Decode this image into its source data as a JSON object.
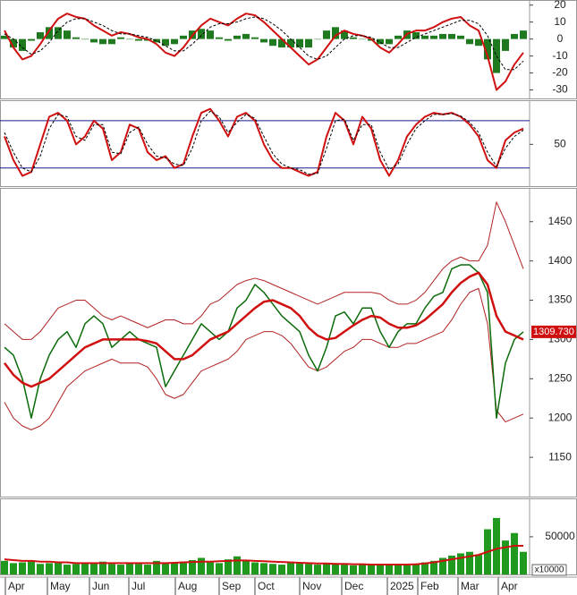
{
  "chart_data": [
    {
      "type": "macd",
      "x": [
        0,
        1,
        2,
        3,
        4,
        5,
        6,
        7,
        8,
        9,
        10,
        11,
        12,
        13,
        14,
        15,
        16,
        17,
        18,
        19,
        20,
        21,
        22,
        23,
        24,
        25,
        26,
        27,
        28,
        29,
        30,
        31,
        32,
        33,
        34,
        35,
        36,
        37,
        38,
        39,
        40,
        41,
        42,
        43,
        44,
        45,
        46,
        47,
        48,
        49,
        50,
        51,
        52,
        53,
        54,
        55,
        56,
        57,
        58
      ],
      "xlim": [
        -0.5,
        58.7
      ],
      "ylim": [
        -35,
        23
      ],
      "yticks": [
        20,
        10,
        0,
        -10,
        -20,
        -30
      ],
      "series": [
        {
          "kind": "bar",
          "color": "#1f7a1f",
          "values": [
            2,
            -5,
            -7,
            -1,
            4,
            7,
            7,
            5,
            1,
            0,
            -2,
            -3,
            -3,
            1,
            0,
            -1,
            -1,
            -2,
            -4,
            -3,
            2,
            5,
            6,
            5,
            1,
            -1,
            2,
            3,
            1,
            -2,
            -4,
            -5,
            -5,
            -5,
            -5,
            0,
            5,
            7,
            5,
            1,
            0,
            -1,
            -3,
            -3,
            2,
            5,
            4,
            2,
            2,
            3,
            3,
            2,
            -3,
            -4,
            -12,
            -20,
            -7,
            3,
            5
          ]
        },
        {
          "kind": "line",
          "color": "#d01010",
          "width": 2,
          "values": [
            5,
            -5,
            -12,
            -10,
            -3,
            5,
            12,
            15,
            13,
            12,
            8,
            5,
            2,
            4,
            3,
            1,
            0,
            -3,
            -8,
            -10,
            -5,
            2,
            8,
            12,
            10,
            8,
            12,
            15,
            14,
            10,
            5,
            0,
            -5,
            -10,
            -15,
            -12,
            -5,
            2,
            5,
            3,
            2,
            0,
            -5,
            -8,
            -3,
            3,
            5,
            5,
            7,
            10,
            12,
            13,
            8,
            5,
            -10,
            -30,
            -25,
            -15,
            -8
          ]
        },
        {
          "kind": "line",
          "color": "#000000",
          "width": 1,
          "dash": true,
          "values": [
            3,
            0,
            -5,
            -9,
            -7,
            -2,
            5,
            10,
            12,
            12,
            10,
            8,
            5,
            3,
            3,
            2,
            1,
            -1,
            -4,
            -7,
            -7,
            -3,
            2,
            7,
            9,
            9,
            10,
            12,
            13,
            12,
            9,
            5,
            0,
            -5,
            -10,
            -12,
            -10,
            -5,
            0,
            2,
            2,
            1,
            -2,
            -5,
            -5,
            -2,
            1,
            3,
            5,
            7,
            9,
            11,
            11,
            9,
            2,
            -10,
            -18,
            -18,
            -13
          ]
        }
      ]
    },
    {
      "type": "stochastic",
      "x": [
        0,
        1,
        2,
        3,
        4,
        5,
        6,
        7,
        8,
        9,
        10,
        11,
        12,
        13,
        14,
        15,
        16,
        17,
        18,
        19,
        20,
        21,
        22,
        23,
        24,
        25,
        26,
        27,
        28,
        29,
        30,
        31,
        32,
        33,
        34,
        35,
        36,
        37,
        38,
        39,
        40,
        41,
        42,
        43,
        44,
        45,
        46,
        47,
        48,
        49,
        50,
        51,
        52,
        53,
        54,
        55,
        56,
        57,
        58
      ],
      "xlim": [
        -0.5,
        58.7
      ],
      "ylim": [
        -3,
        106
      ],
      "yticks": [
        50
      ],
      "hlines": [
        80,
        20
      ],
      "hline_color": "#1a1a8c",
      "series": [
        {
          "kind": "line",
          "color": "#d01010",
          "width": 2,
          "values": [
            60,
            30,
            10,
            15,
            50,
            85,
            90,
            80,
            50,
            60,
            80,
            70,
            30,
            40,
            75,
            70,
            40,
            30,
            35,
            20,
            25,
            60,
            90,
            95,
            80,
            60,
            85,
            90,
            80,
            50,
            30,
            20,
            20,
            15,
            10,
            15,
            60,
            90,
            80,
            50,
            85,
            70,
            30,
            10,
            30,
            60,
            75,
            85,
            90,
            88,
            90,
            85,
            75,
            60,
            30,
            20,
            55,
            65,
            70
          ]
        },
        {
          "kind": "line",
          "color": "#000000",
          "width": 1,
          "dash": true,
          "values": [
            65,
            40,
            20,
            15,
            35,
            70,
            88,
            85,
            60,
            55,
            75,
            75,
            40,
            38,
            65,
            72,
            50,
            35,
            33,
            25,
            23,
            45,
            80,
            92,
            85,
            65,
            78,
            88,
            83,
            60,
            38,
            25,
            20,
            18,
            12,
            13,
            45,
            80,
            82,
            55,
            75,
            75,
            40,
            18,
            25,
            50,
            70,
            80,
            88,
            88,
            89,
            86,
            78,
            65,
            40,
            22,
            45,
            60,
            68
          ]
        }
      ]
    },
    {
      "type": "price",
      "x": [
        0,
        1,
        2,
        3,
        4,
        5,
        6,
        7,
        8,
        9,
        10,
        11,
        12,
        13,
        14,
        15,
        16,
        17,
        18,
        19,
        20,
        21,
        22,
        23,
        24,
        25,
        26,
        27,
        28,
        29,
        30,
        31,
        32,
        33,
        34,
        35,
        36,
        37,
        38,
        39,
        40,
        41,
        42,
        43,
        44,
        45,
        46,
        47,
        48,
        49,
        50,
        51,
        52,
        53,
        54,
        55,
        56,
        57,
        58
      ],
      "xlim": [
        -0.5,
        58.7
      ],
      "ylim": [
        1100,
        1493
      ],
      "yticks": [
        1450,
        1400,
        1350,
        1300,
        1250,
        1200,
        1150
      ],
      "last_label": {
        "value": 1309.73,
        "label": "1309.730"
      },
      "last_color": "#d01010",
      "series": [
        {
          "kind": "line",
          "color": "#b22222",
          "width": 1,
          "values": [
            1320,
            1310,
            1300,
            1300,
            1310,
            1325,
            1340,
            1345,
            1350,
            1350,
            1340,
            1330,
            1325,
            1330,
            1325,
            1320,
            1315,
            1320,
            1325,
            1325,
            1320,
            1320,
            1330,
            1345,
            1350,
            1360,
            1370,
            1375,
            1378,
            1375,
            1370,
            1365,
            1360,
            1355,
            1350,
            1345,
            1350,
            1355,
            1360,
            1360,
            1360,
            1360,
            1358,
            1350,
            1345,
            1345,
            1350,
            1360,
            1375,
            1390,
            1400,
            1405,
            1400,
            1400,
            1420,
            1475,
            1450,
            1420,
            1390
          ]
        },
        {
          "kind": "line",
          "color": "#b22222",
          "width": 1,
          "values": [
            1220,
            1200,
            1190,
            1185,
            1190,
            1200,
            1220,
            1240,
            1250,
            1260,
            1265,
            1270,
            1275,
            1270,
            1270,
            1270,
            1265,
            1250,
            1230,
            1225,
            1230,
            1245,
            1260,
            1265,
            1270,
            1275,
            1285,
            1300,
            1305,
            1310,
            1310,
            1305,
            1295,
            1280,
            1265,
            1260,
            1265,
            1275,
            1285,
            1290,
            1300,
            1300,
            1295,
            1290,
            1290,
            1295,
            1295,
            1300,
            1305,
            1310,
            1325,
            1345,
            1360,
            1365,
            1320,
            1210,
            1195,
            1200,
            1205
          ]
        },
        {
          "kind": "line",
          "color": "#0b6b0b",
          "width": 1.5,
          "values": [
            1290,
            1280,
            1250,
            1200,
            1250,
            1280,
            1300,
            1310,
            1290,
            1320,
            1330,
            1320,
            1290,
            1300,
            1310,
            1300,
            1295,
            1290,
            1240,
            1260,
            1280,
            1300,
            1320,
            1310,
            1300,
            1310,
            1340,
            1350,
            1370,
            1360,
            1345,
            1330,
            1320,
            1310,
            1280,
            1260,
            1290,
            1330,
            1335,
            1320,
            1340,
            1340,
            1310,
            1290,
            1310,
            1320,
            1320,
            1340,
            1355,
            1360,
            1390,
            1395,
            1395,
            1385,
            1360,
            1200,
            1270,
            1300,
            1309.73
          ]
        },
        {
          "kind": "line",
          "color": "#d01010",
          "width": 2.5,
          "values": [
            1270,
            1255,
            1245,
            1240,
            1245,
            1250,
            1260,
            1270,
            1280,
            1290,
            1295,
            1300,
            1300,
            1300,
            1300,
            1300,
            1298,
            1295,
            1285,
            1275,
            1275,
            1280,
            1290,
            1300,
            1305,
            1310,
            1320,
            1330,
            1340,
            1348,
            1350,
            1345,
            1340,
            1330,
            1315,
            1305,
            1300,
            1302,
            1310,
            1318,
            1325,
            1330,
            1328,
            1320,
            1315,
            1315,
            1318,
            1325,
            1335,
            1345,
            1360,
            1372,
            1380,
            1385,
            1370,
            1330,
            1310,
            1305,
            1300
          ]
        }
      ]
    },
    {
      "type": "volume",
      "x": [
        0,
        1,
        2,
        3,
        4,
        5,
        6,
        7,
        8,
        9,
        10,
        11,
        12,
        13,
        14,
        15,
        16,
        17,
        18,
        19,
        20,
        21,
        22,
        23,
        24,
        25,
        26,
        27,
        28,
        29,
        30,
        31,
        32,
        33,
        34,
        35,
        36,
        37,
        38,
        39,
        40,
        41,
        42,
        43,
        44,
        45,
        46,
        47,
        48,
        49,
        50,
        51,
        52,
        53,
        54,
        55,
        56,
        57,
        58
      ],
      "xlim": [
        -0.5,
        58.7
      ],
      "ylim": [
        0,
        101000
      ],
      "yticks": [
        50000
      ],
      "unit_label": "x10000",
      "xticks": [
        {
          "value": 0.1,
          "label": "Apr"
        },
        {
          "value": 4.8,
          "label": "May"
        },
        {
          "value": 9.5,
          "label": "Jun"
        },
        {
          "value": 13.9,
          "label": "Jul"
        },
        {
          "value": 19.1,
          "label": "Aug"
        },
        {
          "value": 24,
          "label": "Sep"
        },
        {
          "value": 28,
          "label": "Oct"
        },
        {
          "value": 33,
          "label": "Nov"
        },
        {
          "value": 37.7,
          "label": "Dec"
        },
        {
          "value": 42.8,
          "label": "2025"
        },
        {
          "value": 46.2,
          "label": "Feb"
        },
        {
          "value": 50.7,
          "label": "Mar"
        },
        {
          "value": 55.2,
          "label": "Apr"
        }
      ],
      "series": [
        {
          "kind": "bar",
          "color": "#1f9a1f",
          "values": [
            18000,
            15000,
            16000,
            17000,
            14000,
            15000,
            16000,
            13000,
            14000,
            15000,
            16000,
            17000,
            14000,
            13000,
            15000,
            14000,
            13000,
            18000,
            16000,
            15000,
            17000,
            19000,
            22000,
            16000,
            15000,
            20000,
            24000,
            18000,
            16000,
            15000,
            14000,
            13000,
            16000,
            15000,
            14000,
            13000,
            14000,
            15000,
            13000,
            12000,
            14000,
            13000,
            12000,
            12000,
            13000,
            12000,
            14000,
            16000,
            18000,
            22000,
            25000,
            28000,
            30000,
            26000,
            60000,
            75000,
            45000,
            55000,
            30000
          ]
        },
        {
          "kind": "line",
          "color": "#d01010",
          "width": 2,
          "values": [
            20000,
            19000,
            18000,
            18000,
            17000,
            17000,
            16000,
            16000,
            15000,
            15000,
            15000,
            15000,
            15000,
            15000,
            15000,
            15000,
            15000,
            15000,
            15000,
            15500,
            16000,
            16500,
            17000,
            17000,
            17500,
            18000,
            18500,
            18500,
            18000,
            17500,
            17000,
            16500,
            16000,
            15500,
            15000,
            14500,
            14500,
            14000,
            14000,
            13500,
            13500,
            13000,
            13000,
            13000,
            13000,
            13000,
            13500,
            14500,
            16000,
            18000,
            20000,
            22000,
            24000,
            26000,
            30000,
            34000,
            36000,
            38000,
            38000
          ]
        }
      ]
    }
  ]
}
